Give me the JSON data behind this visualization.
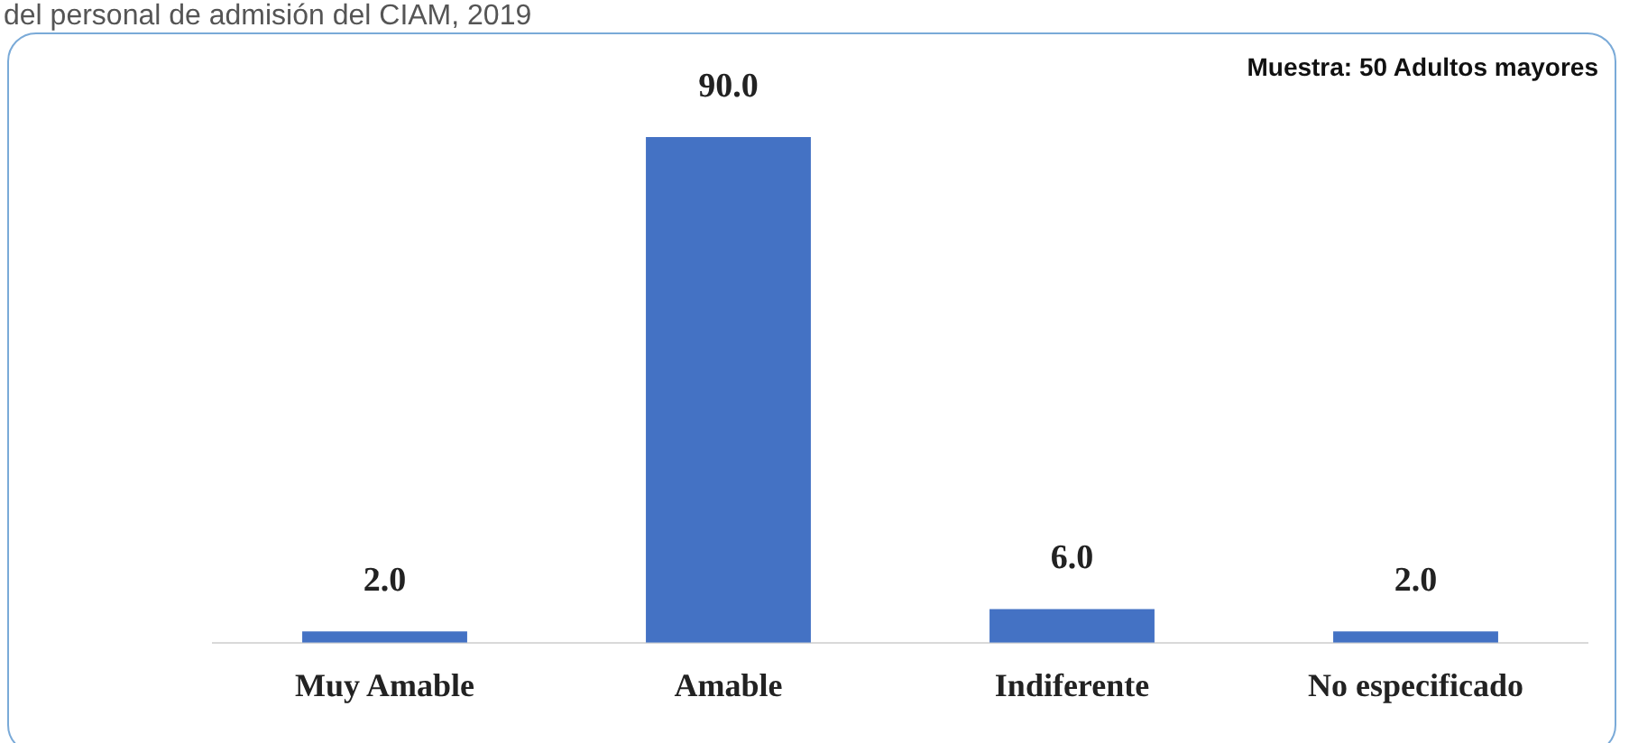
{
  "chart_data": {
    "type": "bar",
    "title": "del personal de admisión del CIAM, 2019",
    "annotations": [
      "Muestra: 50 Adultos mayores"
    ],
    "categories": [
      "Muy Amable",
      "Amable",
      "Indiferente",
      "No especificado"
    ],
    "values": [
      2.0,
      90.0,
      6.0,
      2.0
    ],
    "value_labels": [
      "2.0",
      "90.0",
      "6.0",
      "2.0"
    ],
    "color": "#4472c4",
    "grid": false,
    "legend": false
  }
}
